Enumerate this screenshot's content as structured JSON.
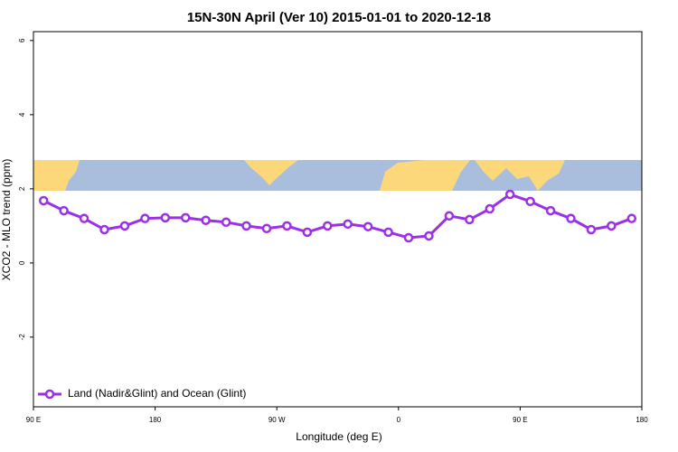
{
  "chart_data": {
    "type": "line",
    "title": "15N-30N April (Ver 10)   2015-01-01 to 2020-12-18",
    "x_label": "Longitude (deg E)",
    "y_label": "XCO2 - MLO trend (ppm)",
    "x": [
      97.5,
      112.5,
      127.5,
      142.5,
      157.5,
      172.5,
      187.5,
      202.5,
      217.5,
      232.5,
      247.5,
      262.5,
      277.5,
      292.5,
      307.5,
      322.5,
      337.5,
      352.5,
      367.5,
      382.5,
      397.5,
      412.5,
      427.5,
      442.5,
      457.5,
      472.5,
      487.5,
      502.5,
      517.5,
      532.5
    ],
    "series": [
      {
        "name": "Land (Nadir&Glint) and Ocean (Glint)",
        "color": "#9b30e8",
        "values": [
          1.68,
          1.41,
          1.2,
          0.9,
          1.0,
          1.2,
          1.22,
          1.22,
          1.15,
          1.1,
          1.0,
          0.93,
          1.0,
          0.83,
          1.0,
          1.05,
          0.98,
          0.83,
          0.68,
          0.73,
          1.27,
          1.17,
          1.46,
          1.85,
          1.66,
          1.41,
          1.2,
          0.9,
          1.0,
          1.2
        ]
      }
    ],
    "xlim": [
      90,
      540
    ],
    "xticks": [
      {
        "value": 90,
        "label": "90 E"
      },
      180,
      {
        "value": 270,
        "label": "90 W"
      },
      {
        "value": 360,
        "label": "0"
      },
      {
        "value": 450,
        "label": "90 E"
      },
      {
        "value": 540,
        "label": "180"
      }
    ],
    "ylim": [
      -3.88,
      6.24
    ],
    "yticks": [
      -2,
      0,
      2,
      4,
      6
    ],
    "legend": "bottom-left",
    "grid": false
  }
}
